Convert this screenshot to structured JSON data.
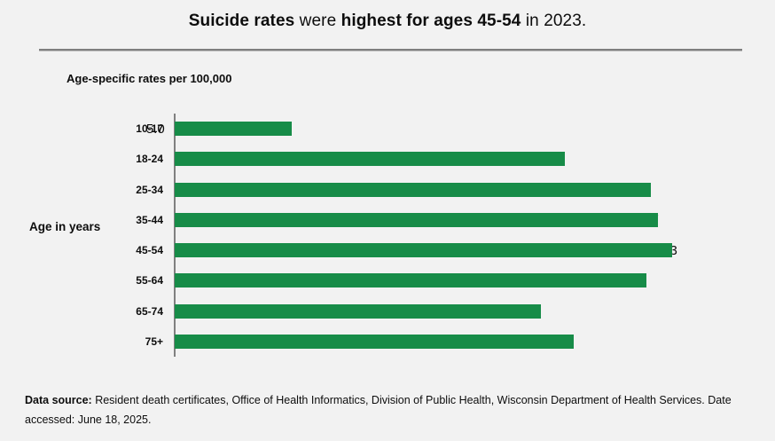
{
  "title": {
    "bold1": "Suicide rates",
    "regular1": " were ",
    "bold2": "highest for ages 45-54",
    "regular2": " in 2023."
  },
  "chart": {
    "axis_title": "Age-specific rates per 100,000",
    "y_axis_label": "Age in years"
  },
  "chart_data": {
    "type": "bar",
    "orientation": "horizontal",
    "title": "Suicide rates were highest for ages 45-54 in 2023.",
    "xlabel": "Age-specific rates per 100,000",
    "ylabel": "Age in years",
    "categories": [
      "10-17",
      "18-24",
      "25-34",
      "35-44",
      "45-54",
      "55-64",
      "65-74",
      "75+"
    ],
    "values": [
      5.0,
      16.7,
      20.4,
      20.7,
      21.3,
      20.2,
      15.7,
      17.1
    ],
    "value_labels": [
      "5.0",
      "16.7",
      "20.4",
      "20.7",
      "21.3",
      "20.2",
      "15.7",
      "17.1"
    ],
    "xlim": [
      0,
      25
    ],
    "grid": false,
    "legend": false,
    "bar_color": "#178C48"
  },
  "footer": {
    "bold": "Data source:",
    "text": " Resident death certificates, Office of Health Informatics, Division of Public Health, Wisconsin Department of Health Services. Date accessed: June 18, 2025."
  },
  "colors": {
    "background": "#f2f2f2",
    "bar": "#178C48",
    "divider": "#7f7f7f",
    "axis_line": "#808080",
    "text": "#0d0d0d"
  }
}
